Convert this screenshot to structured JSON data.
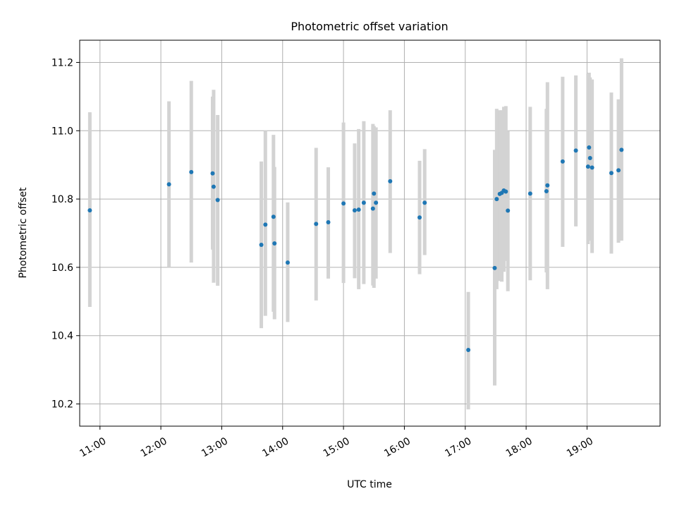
{
  "chart_data": {
    "type": "scatter",
    "title": "Photometric offset variation",
    "xlabel": "UTC time",
    "ylabel": "Photometric offset",
    "xlim": [
      "10:40",
      "20:12"
    ],
    "ylim": [
      10.135,
      11.265
    ],
    "grid": true,
    "x_ticks": [
      "11:00",
      "12:00",
      "13:00",
      "14:00",
      "15:00",
      "16:00",
      "17:00",
      "18:00",
      "19:00"
    ],
    "y_ticks": [
      "10.2",
      "10.4",
      "10.6",
      "10.8",
      "11.0",
      "11.2"
    ],
    "errorbar_color": "#d3d3d3",
    "marker_color": "#1f77b4",
    "series": [
      {
        "x": [
          "10:50",
          "12:08",
          "12:30",
          "12:51",
          "12:52",
          "12:56",
          "13:39",
          "13:43",
          "13:51",
          "13:52",
          "14:05",
          "14:33",
          "14:45",
          "15:00",
          "15:11",
          "15:15",
          "15:20",
          "15:29",
          "15:30",
          "15:32",
          "15:46",
          "16:15",
          "16:20",
          "17:03",
          "17:29",
          "17:31",
          "17:34",
          "17:36",
          "17:38",
          "17:40",
          "17:42",
          "18:04",
          "18:20",
          "18:21",
          "18:36",
          "18:49",
          "19:01",
          "19:02",
          "19:03",
          "19:05",
          "19:24",
          "19:31",
          "19:34"
        ],
        "y": [
          10.767,
          10.843,
          10.879,
          10.875,
          10.836,
          10.797,
          10.666,
          10.725,
          10.748,
          10.67,
          10.614,
          10.727,
          10.732,
          10.787,
          10.767,
          10.769,
          10.789,
          10.772,
          10.816,
          10.789,
          10.852,
          10.746,
          10.789,
          10.358,
          10.598,
          10.8,
          10.815,
          10.818,
          10.825,
          10.822,
          10.766,
          10.816,
          10.823,
          10.84,
          10.91,
          10.942,
          10.895,
          10.951,
          10.92,
          10.892,
          10.876,
          10.884,
          10.944
        ],
        "err_low": [
          10.484,
          10.6,
          10.614,
          10.652,
          10.555,
          10.546,
          10.422,
          10.458,
          10.47,
          10.448,
          10.44,
          10.503,
          10.567,
          10.554,
          10.568,
          10.536,
          10.551,
          10.547,
          10.54,
          10.567,
          10.642,
          10.58,
          10.636,
          10.184,
          10.254,
          10.536,
          10.56,
          10.558,
          10.587,
          10.619,
          10.53,
          10.562,
          10.585,
          10.536,
          10.66,
          10.72,
          10.668,
          10.678,
          10.692,
          10.642,
          10.64,
          10.672,
          10.678
        ],
        "err_high": [
          11.054,
          11.086,
          11.146,
          11.1,
          11.12,
          11.046,
          10.91,
          11.0,
          10.988,
          10.894,
          10.79,
          10.95,
          10.893,
          11.024,
          10.963,
          11.005,
          11.028,
          11.02,
          11.014,
          11.01,
          11.06,
          10.912,
          10.946,
          10.528,
          10.944,
          11.064,
          11.06,
          11.06,
          11.07,
          11.072,
          11.0,
          11.07,
          11.064,
          11.142,
          11.158,
          11.162,
          11.168,
          11.17,
          11.156,
          11.15,
          11.112,
          11.092,
          11.212
        ]
      }
    ]
  }
}
